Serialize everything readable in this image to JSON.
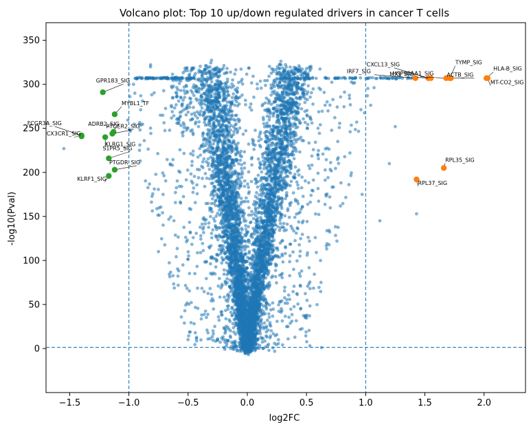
{
  "chart_data": {
    "type": "scatter",
    "title": "Volcano plot: Top 10 up/down regulated drivers in cancer T cells",
    "xlabel": "log2FC",
    "ylabel": "-log10(Pval)",
    "xlim": [
      -1.7,
      2.35
    ],
    "ylim": [
      -50,
      370
    ],
    "xticks": [
      -1.5,
      -1.0,
      -0.5,
      0.0,
      0.5,
      1.0,
      1.5,
      2.0
    ],
    "xtick_labels": [
      "−1.5",
      "−1.0",
      "−0.5",
      "0.0",
      "0.5",
      "1.0",
      "1.5",
      "2.0"
    ],
    "yticks": [
      0,
      50,
      100,
      150,
      200,
      250,
      300,
      350
    ],
    "ytick_labels": [
      "0",
      "50",
      "100",
      "150",
      "200",
      "250",
      "300",
      "350"
    ],
    "thresholds": {
      "log2fc": [
        -1.0,
        1.0
      ],
      "pval_line": 1.3
    },
    "grid": false,
    "colors": {
      "background": "#1f77b4",
      "up": "#ff7f0e",
      "down": "#2ca02c",
      "threshold": "#1f77b4"
    },
    "background_points": {
      "name": "",
      "description_count": 6000,
      "shape": "V-shaped cloud symmetric around log2FC 0, plus saturated band at -log10(Pval) ~307",
      "notable_points": [
        {
          "x": -1.55,
          "y": 227
        },
        {
          "x": -1.0,
          "y": 300
        },
        {
          "x": -0.95,
          "y": 290
        },
        {
          "x": -0.9,
          "y": 287
        },
        {
          "x": -0.87,
          "y": 236
        },
        {
          "x": -0.75,
          "y": 110
        },
        {
          "x": 1.25,
          "y": 252
        },
        {
          "x": 1.43,
          "y": 153
        },
        {
          "x": 1.2,
          "y": 210
        },
        {
          "x": 0.97,
          "y": 175
        },
        {
          "x": 1.12,
          "y": 145
        }
      ]
    },
    "up_regulated": [
      {
        "label": "TYMP_SIG",
        "x": 1.71,
        "y": 307
      },
      {
        "label": "HLA-B_SIG",
        "x": 2.02,
        "y": 307
      },
      {
        "label": "CXCL13_SIG",
        "x": 1.53,
        "y": 307
      },
      {
        "label": "IRF7_SIG",
        "x": 1.42,
        "y": 307
      },
      {
        "label": "MX1_SIG",
        "x": 1.55,
        "y": 307
      },
      {
        "label": "HSP90AA1_SIG",
        "x": 1.68,
        "y": 307
      },
      {
        "label": "ACTB_SIG",
        "x": 1.72,
        "y": 307
      },
      {
        "label": "MT-CO2_SIG",
        "x": 2.03,
        "y": 307
      },
      {
        "label": "RPL35_SIG",
        "x": 1.66,
        "y": 205
      },
      {
        "label": "RPL37_SIG",
        "x": 1.43,
        "y": 192
      }
    ],
    "down_regulated": [
      {
        "label": "GPR183_SIG",
        "x": -1.22,
        "y": 291
      },
      {
        "label": "MYBL1_TF",
        "x": -1.12,
        "y": 266
      },
      {
        "label": "FCGR3A_SIG",
        "x": -1.4,
        "y": 242
      },
      {
        "label": "CX3CR1_SIG",
        "x": -1.4,
        "y": 241
      },
      {
        "label": "ADRB2_SIG",
        "x": -1.13,
        "y": 246
      },
      {
        "label": "PTGER2_SIG",
        "x": -1.14,
        "y": 244
      },
      {
        "label": "KLRG1_SIG",
        "x": -1.2,
        "y": 240
      },
      {
        "label": "S1PR5_SIG",
        "x": -1.17,
        "y": 216
      },
      {
        "label": "PTGDR_SIG",
        "x": -1.12,
        "y": 203
      },
      {
        "label": "KLRF1_SIG",
        "x": -1.17,
        "y": 196
      }
    ]
  }
}
